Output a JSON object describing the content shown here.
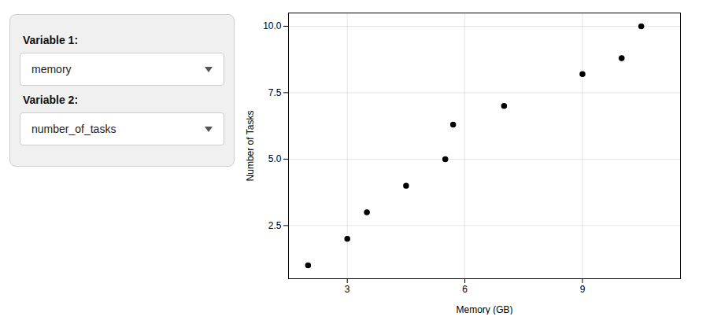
{
  "chart_data": {
    "type": "scatter",
    "x": [
      2.0,
      3.0,
      3.5,
      4.5,
      5.5,
      5.7,
      7.0,
      9.0,
      10.0,
      10.5
    ],
    "values": [
      1.0,
      2.0,
      3.0,
      4.0,
      5.0,
      6.3,
      7.0,
      8.2,
      8.8,
      10.0
    ],
    "xlabel": "Memory (GB)",
    "ylabel": "Number of Tasks",
    "color": "black",
    "xlim": [
      1.5,
      11.5
    ],
    "ylim": [
      0.5,
      10.5
    ],
    "xticks": [
      3,
      6,
      9
    ],
    "yticks": [
      2.5,
      {
        "value": 5.0,
        "label": "5.0"
      },
      7.5,
      {
        "value": 10.0,
        "label": "10.0"
      }
    ],
    "grid": true,
    "annotations": [
      "Variable 1:",
      "memory",
      "Variable 2:",
      "number_of_tasks"
    ]
  }
}
